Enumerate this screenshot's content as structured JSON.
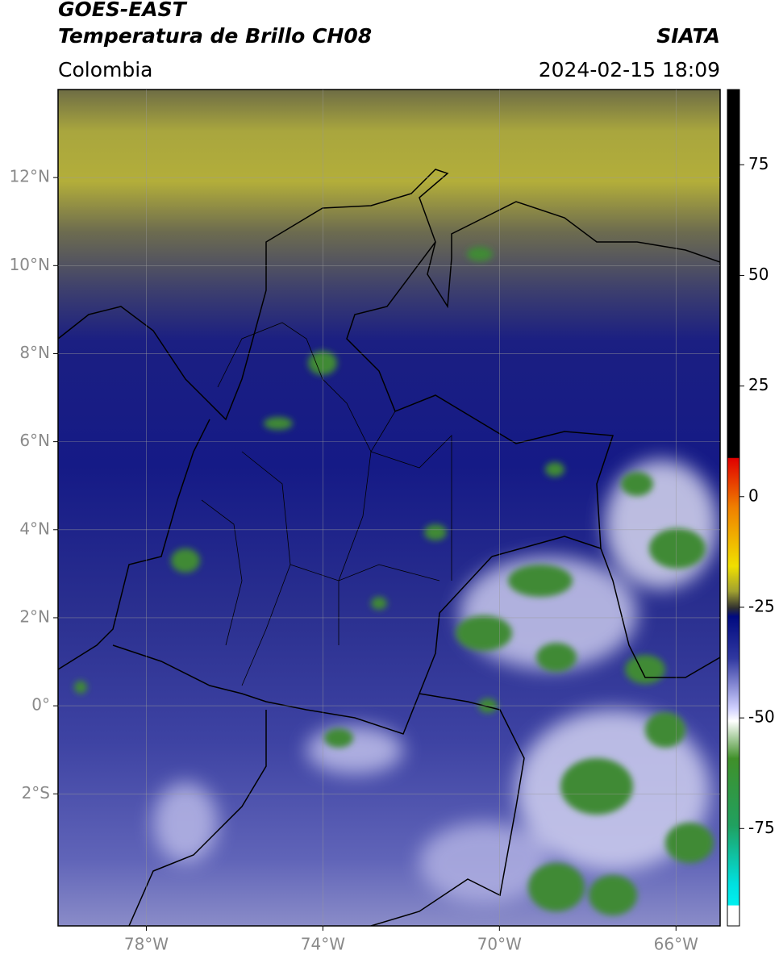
{
  "header": {
    "satellite": "GOES-EAST",
    "product": "Temperatura de Brillo CH08",
    "agency": "SIATA",
    "region": "Colombia",
    "datetime": "2024-02-15 18:09"
  },
  "map": {
    "xlim": [
      -80,
      -65
    ],
    "ylim": [
      -5,
      14
    ],
    "xticks": [
      {
        "value": -78,
        "label": "78°W"
      },
      {
        "value": -74,
        "label": "74°W"
      },
      {
        "value": -70,
        "label": "70°W"
      },
      {
        "value": -66,
        "label": "66°W"
      }
    ],
    "yticks": [
      {
        "value": 12,
        "label": "12°N"
      },
      {
        "value": 10,
        "label": "10°N"
      },
      {
        "value": 8,
        "label": "8°N"
      },
      {
        "value": 6,
        "label": "6°N"
      },
      {
        "value": 4,
        "label": "4°N"
      },
      {
        "value": 2,
        "label": "2°N"
      },
      {
        "value": 0,
        "label": "0°"
      },
      {
        "value": -2,
        "label": "2°S"
      }
    ],
    "grid": true
  },
  "colorbar": {
    "ylim": [
      -97,
      92
    ],
    "yticks": [
      75,
      50,
      25,
      0,
      -25,
      -50,
      -75
    ]
  }
}
